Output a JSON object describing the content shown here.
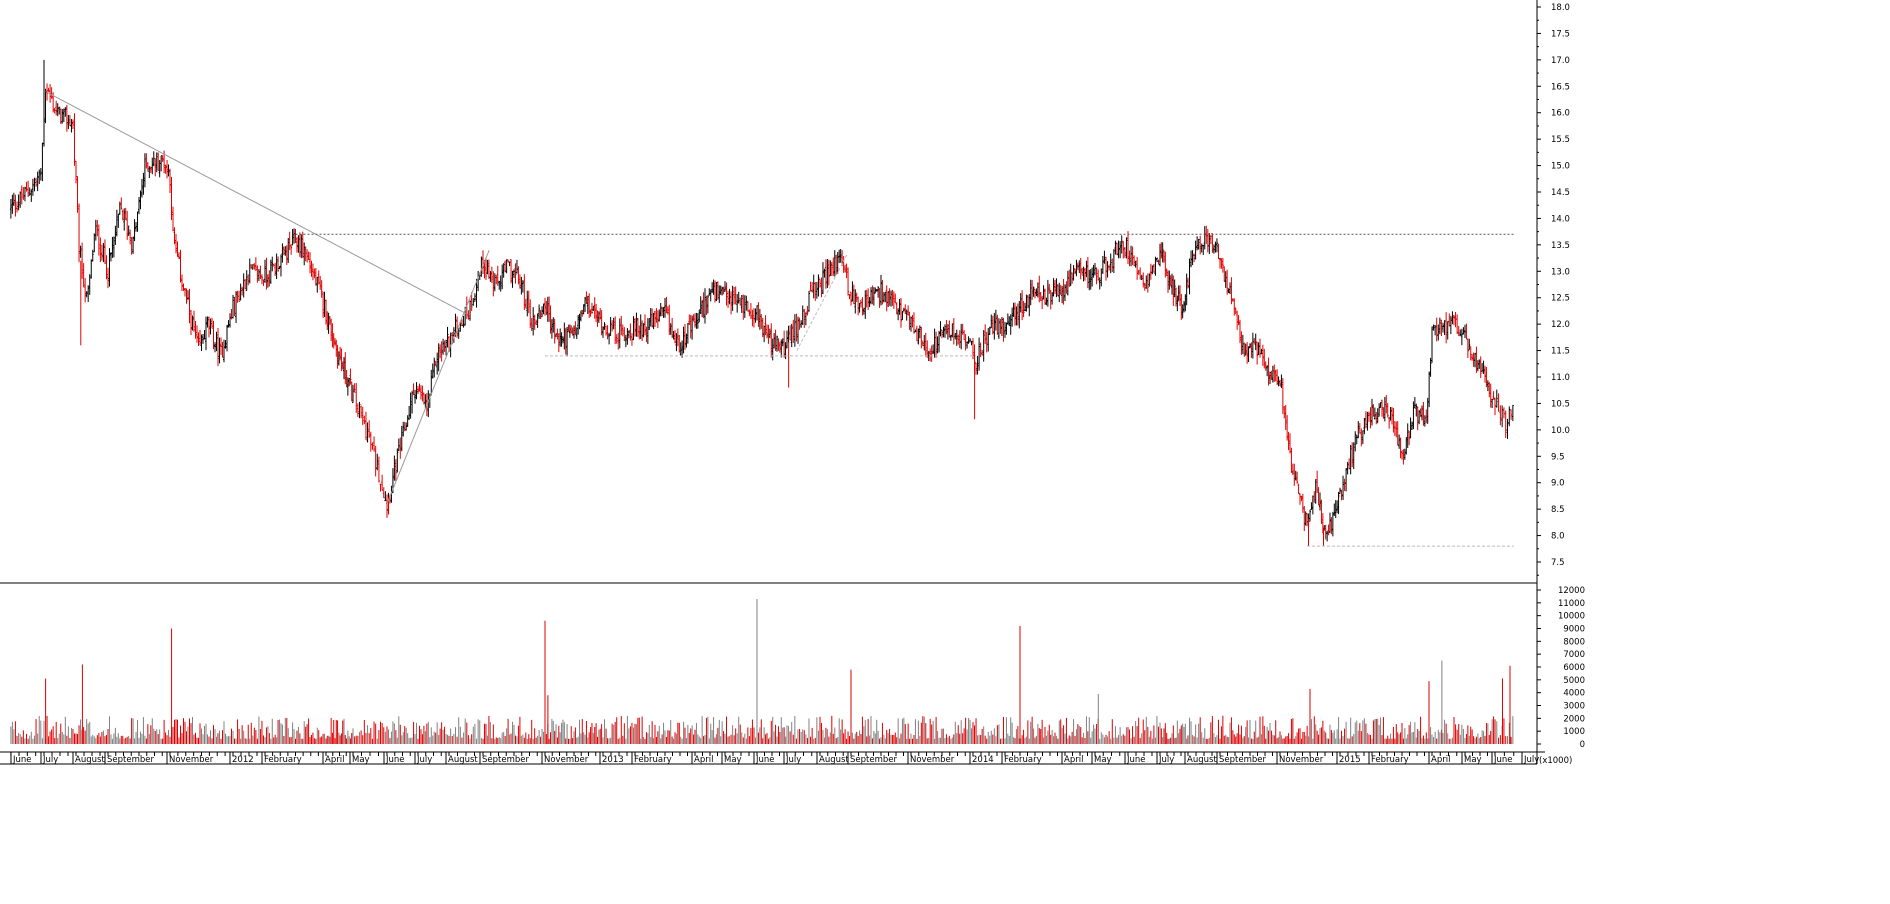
{
  "chart_data": [
    {
      "type": "candlestick",
      "panel": "price",
      "title": "",
      "xlabel": "",
      "ylabel": "",
      "ylim": [
        7.2,
        18.2
      ],
      "grid": false,
      "legend": "none",
      "y_ticks": [
        "7.5",
        "8.0",
        "8.5",
        "9.0",
        "9.5",
        "10.0",
        "10.5",
        "11.0",
        "11.5",
        "12.0",
        "12.5",
        "13.0",
        "13.5",
        "14.0",
        "14.5",
        "15.0",
        "15.5",
        "16.0",
        "16.5",
        "17.0",
        "17.5",
        "18.0"
      ],
      "x_range": [
        0,
        48.5
      ],
      "x_unit": "months since start of June 2011",
      "month_labels": [
        {
          "x": 0.1,
          "label": "June"
        },
        {
          "x": 1.0,
          "label": "July"
        },
        {
          "x": 2.0,
          "label": "August"
        },
        {
          "x": 3.0,
          "label": "September"
        },
        {
          "x": 5.0,
          "label": "November"
        },
        {
          "x": 7.0,
          "label": "2012"
        },
        {
          "x": 8.0,
          "label": "February"
        },
        {
          "x": 10.0,
          "label": "April"
        },
        {
          "x": 11.0,
          "label": "May"
        },
        {
          "x": 12.0,
          "label": "June"
        },
        {
          "x": 13.0,
          "label": "July"
        },
        {
          "x": 14.0,
          "label": "August"
        },
        {
          "x": 15.0,
          "label": "September"
        },
        {
          "x": 17.0,
          "label": "November"
        },
        {
          "x": 19.0,
          "label": "2013"
        },
        {
          "x": 20.0,
          "label": "February"
        },
        {
          "x": 22.0,
          "label": "April"
        },
        {
          "x": 23.0,
          "label": "May"
        },
        {
          "x": 24.0,
          "label": "June"
        },
        {
          "x": 25.0,
          "label": "July"
        },
        {
          "x": 26.0,
          "label": "August"
        },
        {
          "x": 27.0,
          "label": "September"
        },
        {
          "x": 29.0,
          "label": "November"
        },
        {
          "x": 31.0,
          "label": "2014"
        },
        {
          "x": 32.0,
          "label": "February"
        },
        {
          "x": 34.0,
          "label": "April"
        },
        {
          "x": 35.0,
          "label": "May"
        },
        {
          "x": 36.0,
          "label": "June"
        },
        {
          "x": 37.0,
          "label": "July"
        },
        {
          "x": 38.0,
          "label": "August"
        },
        {
          "x": 39.0,
          "label": "September"
        },
        {
          "x": 41.0,
          "label": "November"
        },
        {
          "x": 43.0,
          "label": "2015"
        },
        {
          "x": 44.0,
          "label": "February"
        },
        {
          "x": 46.0,
          "label": "April"
        },
        {
          "x": 47.0,
          "label": "May"
        },
        {
          "x": 48.0,
          "label": "June"
        },
        {
          "x": 48.8,
          "label": "July"
        }
      ],
      "price_path": [
        [
          0,
          14.2
        ],
        [
          0.5,
          14.5
        ],
        [
          0.9,
          14.8
        ],
        [
          1.05,
          16.5
        ],
        [
          1.4,
          16.0
        ],
        [
          1.9,
          15.8
        ],
        [
          2.1,
          13.4
        ],
        [
          2.35,
          12.4
        ],
        [
          2.6,
          13.8
        ],
        [
          3.0,
          13.0
        ],
        [
          3.4,
          14.2
        ],
        [
          3.8,
          13.5
        ],
        [
          4.2,
          15.0
        ],
        [
          4.8,
          15.1
        ],
        [
          5.0,
          14.8
        ],
        [
          5.1,
          13.6
        ],
        [
          5.5,
          12.5
        ],
        [
          5.9,
          11.5
        ],
        [
          6.2,
          12.0
        ],
        [
          6.6,
          11.4
        ],
        [
          7.0,
          12.3
        ],
        [
          7.5,
          13.0
        ],
        [
          8.0,
          12.9
        ],
        [
          8.5,
          13.2
        ],
        [
          9.0,
          13.6
        ],
        [
          9.3,
          13.4
        ],
        [
          9.8,
          12.6
        ],
        [
          10.4,
          11.5
        ],
        [
          10.9,
          10.8
        ],
        [
          11.4,
          10.0
        ],
        [
          11.8,
          9.1
        ],
        [
          12.0,
          8.6
        ],
        [
          12.4,
          9.6
        ],
        [
          12.9,
          10.8
        ],
        [
          13.3,
          10.4
        ],
        [
          13.6,
          11.4
        ],
        [
          14.0,
          11.7
        ],
        [
          14.6,
          12.3
        ],
        [
          15.0,
          13.2
        ],
        [
          15.4,
          12.7
        ],
        [
          15.8,
          13.1
        ],
        [
          16.2,
          12.8
        ],
        [
          16.6,
          12.0
        ],
        [
          17.0,
          12.4
        ],
        [
          17.4,
          11.7
        ],
        [
          18.0,
          11.8
        ],
        [
          18.4,
          12.4
        ],
        [
          19.0,
          12.0
        ],
        [
          19.5,
          11.8
        ],
        [
          20.0,
          11.9
        ],
        [
          20.5,
          12.0
        ],
        [
          21.0,
          12.2
        ],
        [
          21.4,
          11.6
        ],
        [
          22.0,
          12.0
        ],
        [
          22.5,
          12.6
        ],
        [
          23.0,
          12.5
        ],
        [
          23.5,
          12.4
        ],
        [
          24.0,
          12.2
        ],
        [
          24.5,
          11.6
        ],
        [
          25.0,
          11.6
        ],
        [
          25.4,
          12.1
        ],
        [
          25.8,
          12.6
        ],
        [
          26.3,
          13.0
        ],
        [
          26.7,
          13.3
        ],
        [
          27.0,
          12.5
        ],
        [
          27.4,
          12.4
        ],
        [
          28.0,
          12.6
        ],
        [
          28.5,
          12.3
        ],
        [
          29.0,
          12.0
        ],
        [
          29.6,
          11.5
        ],
        [
          30.2,
          11.9
        ],
        [
          30.8,
          11.7
        ],
        [
          31.1,
          11.3
        ],
        [
          31.5,
          11.9
        ],
        [
          32.0,
          12.0
        ],
        [
          32.5,
          12.3
        ],
        [
          33.0,
          12.6
        ],
        [
          33.5,
          12.5
        ],
        [
          34.0,
          12.7
        ],
        [
          34.5,
          13.0
        ],
        [
          35.0,
          12.9
        ],
        [
          35.5,
          13.2
        ],
        [
          35.8,
          13.6
        ],
        [
          36.2,
          13.2
        ],
        [
          36.6,
          12.8
        ],
        [
          37.0,
          13.4
        ],
        [
          37.4,
          12.7
        ],
        [
          37.8,
          12.3
        ],
        [
          38.2,
          13.5
        ],
        [
          38.6,
          13.6
        ],
        [
          39.0,
          13.3
        ],
        [
          39.4,
          12.4
        ],
        [
          39.8,
          11.4
        ],
        [
          40.2,
          11.6
        ],
        [
          40.6,
          11.2
        ],
        [
          41.0,
          11.0
        ],
        [
          41.3,
          9.6
        ],
        [
          41.6,
          8.8
        ],
        [
          41.9,
          8.2
        ],
        [
          42.2,
          8.9
        ],
        [
          42.5,
          8.0
        ],
        [
          42.8,
          8.3
        ],
        [
          43.1,
          9.0
        ],
        [
          43.5,
          9.8
        ],
        [
          43.9,
          10.3
        ],
        [
          44.3,
          10.4
        ],
        [
          44.7,
          10.2
        ],
        [
          45.0,
          9.4
        ],
        [
          45.4,
          10.3
        ],
        [
          45.8,
          10.2
        ],
        [
          46.0,
          11.8
        ],
        [
          46.4,
          11.9
        ],
        [
          46.8,
          12.0
        ],
        [
          47.2,
          11.4
        ],
        [
          47.6,
          11.0
        ],
        [
          48.0,
          10.6
        ],
        [
          48.3,
          10.1
        ],
        [
          48.5,
          10.6
        ]
      ],
      "spikes": [
        {
          "x": 2.15,
          "low": 11.6
        },
        {
          "x": 12.05,
          "low": 8.4
        },
        {
          "x": 25.05,
          "low": 10.8
        },
        {
          "x": 31.05,
          "low": 10.2
        },
        {
          "x": 41.95,
          "low": 7.8
        },
        {
          "x": 42.45,
          "low": 7.8
        },
        {
          "x": 1.0,
          "high": 17.0
        }
      ],
      "annotations": [
        {
          "kind": "trendline",
          "style": "solid",
          "x1": 1.05,
          "y1": 16.4,
          "x2": 14.5,
          "y2": 12.2
        },
        {
          "kind": "trendline",
          "style": "solid",
          "x1": 12.0,
          "y1": 8.6,
          "x2": 15.2,
          "y2": 13.4
        },
        {
          "kind": "trendline",
          "style": "dashed-light",
          "x1": 25.3,
          "y1": 11.5,
          "x2": 26.9,
          "y2": 13.35
        },
        {
          "kind": "horizontal",
          "style": "dotted",
          "x1": 9.0,
          "x2": 48.5,
          "y": 13.7
        },
        {
          "kind": "horizontal",
          "style": "dashed-light",
          "x1": 17.0,
          "x2": 31.1,
          "y": 11.4
        },
        {
          "kind": "horizontal",
          "style": "dashed-light",
          "x1": 41.9,
          "x2": 48.5,
          "y": 7.8
        }
      ]
    },
    {
      "type": "bar",
      "panel": "volume",
      "title": "",
      "xlabel": "",
      "ylabel": "",
      "ylim": [
        0,
        12000
      ],
      "y_ticks": [
        "0",
        "1000",
        "2000",
        "3000",
        "4000",
        "5000",
        "6000",
        "7000",
        "8000",
        "9000",
        "10000",
        "11000",
        "12000"
      ],
      "unit_label": "(x1000)",
      "typical_range": [
        400,
        2200
      ],
      "spikes": [
        {
          "x": 1.05,
          "value": 5100
        },
        {
          "x": 2.2,
          "value": 6200
        },
        {
          "x": 5.05,
          "value": 9000
        },
        {
          "x": 17.0,
          "value": 9600
        },
        {
          "x": 17.1,
          "value": 3800
        },
        {
          "x": 24.0,
          "value": 11300
        },
        {
          "x": 27.0,
          "value": 5800
        },
        {
          "x": 32.5,
          "value": 9200
        },
        {
          "x": 35.1,
          "value": 3900
        },
        {
          "x": 42.0,
          "value": 4300
        },
        {
          "x": 46.3,
          "value": 6500
        },
        {
          "x": 45.9,
          "value": 4900
        },
        {
          "x": 48.2,
          "value": 5100
        },
        {
          "x": 48.4,
          "value": 6100
        }
      ]
    }
  ],
  "colors": {
    "up": "#000000",
    "down": "#e00000",
    "axis": "#000000",
    "trendline": "#9a9a9a",
    "dotted_line": "#555555",
    "dashed_light": "#bbbbbb",
    "background": "#ffffff"
  }
}
